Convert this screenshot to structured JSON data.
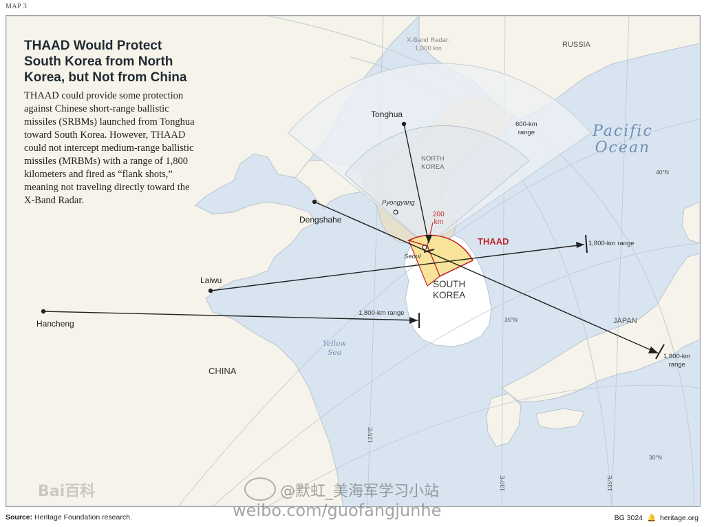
{
  "map_label": "MAP 3",
  "title": "THAAD Would Protect South Korea from North Korea, but Not from China",
  "description": "THAAD could provide some protection against Chinese short-range ballistic missiles (SRBMs) launched from Tonghua toward South Korea. However, THAAD could not intercept medium-range ballistic missiles (MRBMs) with a range of 1,800 kilometers and fired as “flank shots,” meaning not traveling directly toward the X-Band Radar.",
  "radar_label": [
    "X-Band Radar:",
    "1,000 km"
  ],
  "range_600": [
    "600-km",
    "range"
  ],
  "range_200": [
    "200",
    "km"
  ],
  "thaad_label": "THAAD",
  "countries": {
    "russia": "RUSSIA",
    "north_korea": [
      "NORTH",
      "KOREA"
    ],
    "south_korea": [
      "SOUTH",
      "KOREA"
    ],
    "japan": "JAPAN",
    "china": "CHINA"
  },
  "ocean": [
    "Pacific",
    "Ocean"
  ],
  "sea": [
    "Yellow",
    "Sea"
  ],
  "cities": {
    "tonghua": "Tonghua",
    "pyongyang": "Pyongyang",
    "seoul": "Seoul",
    "dengshahe": "Dengshahe",
    "laiwu": "Laiwu",
    "hancheng": "Hancheng"
  },
  "missile_ranges": {
    "laiwu": "1,800-km range",
    "hancheng": "1,800-km range",
    "dengshahe": [
      "1,800-km",
      "range"
    ]
  },
  "graticule": {
    "lat40": "40°N",
    "lat35": "35°N",
    "lat30": "30°N",
    "lon125": "125°E",
    "lon130": "130°E",
    "lon135": "135°E"
  },
  "footer": {
    "source_label": "Source:",
    "source_text": "Heritage Foundation research.",
    "code": "BG 3024",
    "site": "heritage.org"
  },
  "watermarks": {
    "baidu": "Bai百科",
    "weibo_handle": "@默虹_美海军学习小站",
    "weibo_url": "weibo.com/guofangjunhe"
  },
  "colors": {
    "sea": "#d8e4f0",
    "land": "#f6f3ea",
    "north_korea": "#e6dfcc",
    "south_korea": "#ffffff",
    "radar_fan": "#eef1f4",
    "thaad_fill": "#f8e39a",
    "thaad_stroke": "#c0272d"
  }
}
